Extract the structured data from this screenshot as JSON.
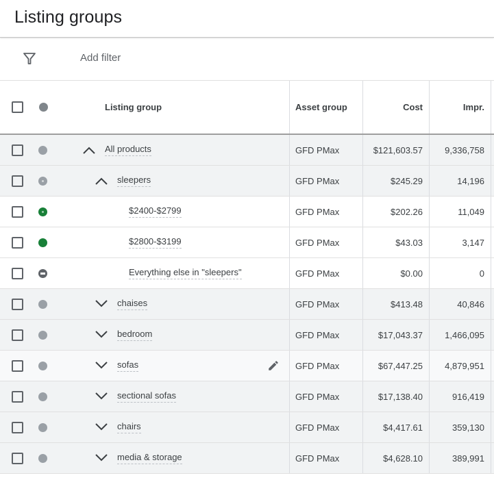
{
  "page": {
    "title": "Listing groups"
  },
  "filter": {
    "add_filter_label": "Add filter",
    "icon": "filter-icon"
  },
  "table": {
    "headers": {
      "listing_group": "Listing group",
      "asset_group": "Asset group",
      "cost": "Cost",
      "impr": "Impr."
    },
    "rows": [
      {
        "name": "All products",
        "asset_group": "GFD PMax",
        "cost": "$121,603.57",
        "impr": "9,336,758",
        "bg": "grey",
        "status": "grey",
        "chevron": "up",
        "level": 0
      },
      {
        "name": "sleepers",
        "asset_group": "GFD PMax",
        "cost": "$245.29",
        "impr": "14,196",
        "bg": "grey",
        "status": "ring",
        "chevron": "up",
        "level": 1
      },
      {
        "name": "$2400-$2799",
        "asset_group": "GFD PMax",
        "cost": "$202.26",
        "impr": "11,049",
        "bg": "white",
        "status": "green-ring",
        "chevron": "none",
        "level": 2
      },
      {
        "name": "$2800-$3199",
        "asset_group": "GFD PMax",
        "cost": "$43.03",
        "impr": "3,147",
        "bg": "white",
        "status": "green",
        "chevron": "none",
        "level": 2
      },
      {
        "name": "Everything else in \"sleepers\"",
        "asset_group": "GFD PMax",
        "cost": "$0.00",
        "impr": "0",
        "bg": "white",
        "status": "excluded",
        "chevron": "none",
        "level": 2
      },
      {
        "name": "chaises",
        "asset_group": "GFD PMax",
        "cost": "$413.48",
        "impr": "40,846",
        "bg": "grey",
        "status": "grey",
        "chevron": "down",
        "level": 1
      },
      {
        "name": "bedroom",
        "asset_group": "GFD PMax",
        "cost": "$17,043.37",
        "impr": "1,466,095",
        "bg": "grey",
        "status": "grey",
        "chevron": "down",
        "level": 1
      },
      {
        "name": "sofas",
        "asset_group": "GFD PMax",
        "cost": "$67,447.25",
        "impr": "4,879,951",
        "bg": "hover",
        "status": "grey",
        "chevron": "down",
        "level": 1,
        "edit": true
      },
      {
        "name": "sectional sofas",
        "asset_group": "GFD PMax",
        "cost": "$17,138.40",
        "impr": "916,419",
        "bg": "grey",
        "status": "grey",
        "chevron": "down",
        "level": 1
      },
      {
        "name": "chairs",
        "asset_group": "GFD PMax",
        "cost": "$4,417.61",
        "impr": "359,130",
        "bg": "grey",
        "status": "grey",
        "chevron": "down",
        "level": 1
      },
      {
        "name": "media & storage",
        "asset_group": "GFD PMax",
        "cost": "$4,628.10",
        "impr": "389,991",
        "bg": "grey",
        "status": "grey",
        "chevron": "down",
        "level": 1
      }
    ]
  },
  "colors": {
    "status_green": "#188038",
    "status_grey": "#9aa0a6",
    "row_grey": "#f1f3f4"
  }
}
